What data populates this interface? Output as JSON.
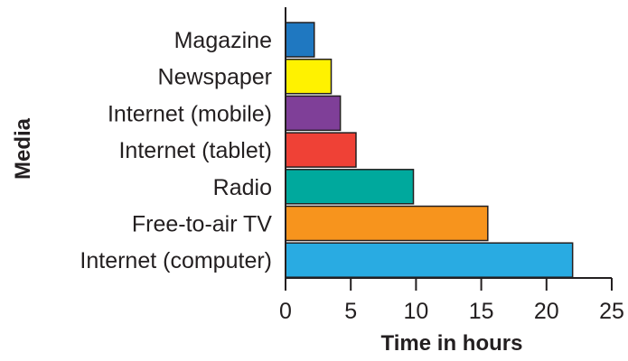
{
  "chart_data": {
    "type": "bar",
    "orientation": "horizontal",
    "categories": [
      "Magazine",
      "Newspaper",
      "Internet (mobile)",
      "Internet (tablet)",
      "Radio",
      "Free-to-air TV",
      "Internet (computer)"
    ],
    "values": [
      2.2,
      3.5,
      4.2,
      5.4,
      9.8,
      15.5,
      22
    ],
    "colors": [
      "#1f78c1",
      "#fff200",
      "#7f3f98",
      "#ef4136",
      "#00a99d",
      "#f7941d",
      "#29abe2"
    ],
    "xlabel": "Time in hours",
    "ylabel": "Media",
    "xlim": [
      0,
      25
    ],
    "xticks": [
      0,
      5,
      10,
      15,
      20,
      25
    ],
    "grid": false
  }
}
